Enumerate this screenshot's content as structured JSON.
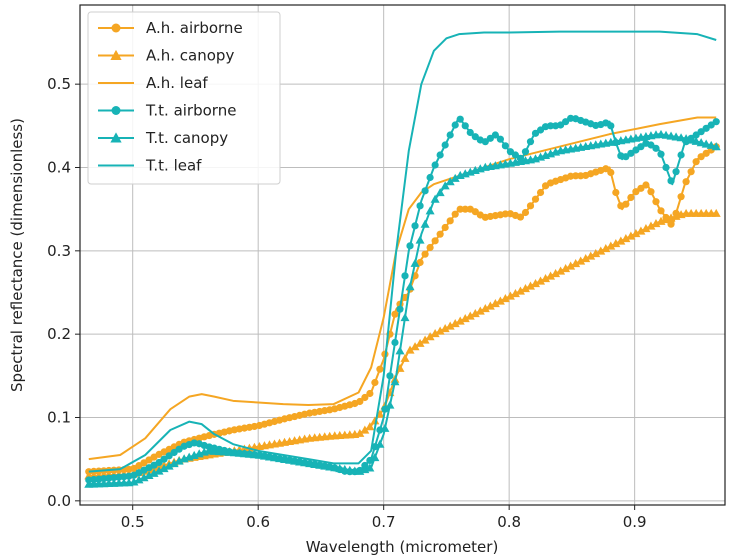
{
  "chart_data": {
    "type": "line",
    "xlabel": "Wavelength (micrometer)",
    "ylabel": "Spectral reflectance (dimensionless)",
    "xlim": [
      0.458,
      0.972
    ],
    "ylim": [
      -0.005,
      0.595
    ],
    "xticks": [
      0.5,
      0.6,
      0.7,
      0.8,
      0.9
    ],
    "xtick_labels": [
      "0.5",
      "0.6",
      "0.7",
      "0.8",
      "0.9"
    ],
    "yticks": [
      0.0,
      0.1,
      0.2,
      0.3,
      0.4,
      0.5
    ],
    "ytick_labels": [
      "0.0",
      "0.1",
      "0.2",
      "0.3",
      "0.4",
      "0.5"
    ],
    "grid": true,
    "legend_position": "top-left",
    "colors": {
      "ah": "#f5a623",
      "tt": "#17b3b6"
    },
    "series": [
      {
        "name": "A.h. airborne",
        "color": "#f5a623",
        "marker": "circle",
        "x": [
          0.465,
          0.5,
          0.52,
          0.54,
          0.56,
          0.58,
          0.6,
          0.62,
          0.64,
          0.66,
          0.68,
          0.69,
          0.7,
          0.71,
          0.72,
          0.73,
          0.74,
          0.75,
          0.76,
          0.77,
          0.78,
          0.8,
          0.81,
          0.82,
          0.83,
          0.84,
          0.85,
          0.86,
          0.87,
          0.88,
          0.885,
          0.89,
          0.9,
          0.91,
          0.92,
          0.93,
          0.94,
          0.95,
          0.96,
          0.965
        ],
        "y": [
          0.035,
          0.038,
          0.055,
          0.07,
          0.078,
          0.085,
          0.09,
          0.098,
          0.105,
          0.11,
          0.118,
          0.13,
          0.17,
          0.23,
          0.25,
          0.29,
          0.31,
          0.33,
          0.35,
          0.35,
          0.34,
          0.345,
          0.34,
          0.36,
          0.38,
          0.385,
          0.39,
          0.39,
          0.395,
          0.4,
          0.37,
          0.35,
          0.37,
          0.38,
          0.35,
          0.33,
          0.38,
          0.41,
          0.42,
          0.425
        ]
      },
      {
        "name": "A.h. canopy",
        "color": "#f5a623",
        "marker": "triangle",
        "x": [
          0.465,
          0.5,
          0.52,
          0.54,
          0.56,
          0.58,
          0.6,
          0.62,
          0.64,
          0.66,
          0.68,
          0.69,
          0.7,
          0.71,
          0.72,
          0.73,
          0.74,
          0.76,
          0.78,
          0.8,
          0.82,
          0.84,
          0.86,
          0.88,
          0.9,
          0.92,
          0.94,
          0.965
        ],
        "y": [
          0.03,
          0.032,
          0.04,
          0.05,
          0.055,
          0.06,
          0.065,
          0.07,
          0.075,
          0.078,
          0.08,
          0.09,
          0.11,
          0.15,
          0.18,
          0.19,
          0.2,
          0.215,
          0.23,
          0.245,
          0.26,
          0.275,
          0.29,
          0.305,
          0.32,
          0.335,
          0.345,
          0.345
        ]
      },
      {
        "name": "A.h. leaf",
        "color": "#f5a623",
        "marker": "none",
        "x": [
          0.465,
          0.49,
          0.51,
          0.53,
          0.545,
          0.555,
          0.565,
          0.58,
          0.6,
          0.62,
          0.64,
          0.66,
          0.68,
          0.69,
          0.7,
          0.71,
          0.72,
          0.73,
          0.74,
          0.76,
          0.78,
          0.8,
          0.84,
          0.88,
          0.92,
          0.95,
          0.965
        ],
        "y": [
          0.05,
          0.055,
          0.075,
          0.11,
          0.125,
          0.128,
          0.125,
          0.12,
          0.118,
          0.116,
          0.115,
          0.116,
          0.13,
          0.16,
          0.22,
          0.3,
          0.35,
          0.37,
          0.38,
          0.39,
          0.4,
          0.41,
          0.425,
          0.44,
          0.452,
          0.46,
          0.46
        ]
      },
      {
        "name": "T.t. airborne",
        "color": "#17b3b6",
        "marker": "circle",
        "x": [
          0.465,
          0.5,
          0.52,
          0.54,
          0.55,
          0.56,
          0.58,
          0.6,
          0.62,
          0.64,
          0.66,
          0.67,
          0.68,
          0.69,
          0.7,
          0.71,
          0.72,
          0.73,
          0.74,
          0.75,
          0.76,
          0.77,
          0.78,
          0.79,
          0.8,
          0.81,
          0.82,
          0.83,
          0.84,
          0.85,
          0.86,
          0.87,
          0.88,
          0.885,
          0.89,
          0.9,
          0.91,
          0.92,
          0.93,
          0.94,
          0.95,
          0.96,
          0.965
        ],
        "y": [
          0.025,
          0.03,
          0.045,
          0.065,
          0.07,
          0.065,
          0.058,
          0.055,
          0.05,
          0.045,
          0.04,
          0.035,
          0.035,
          0.05,
          0.1,
          0.2,
          0.3,
          0.36,
          0.4,
          0.43,
          0.46,
          0.44,
          0.43,
          0.44,
          0.42,
          0.41,
          0.44,
          0.45,
          0.45,
          0.46,
          0.455,
          0.45,
          0.455,
          0.43,
          0.41,
          0.42,
          0.43,
          0.42,
          0.38,
          0.43,
          0.44,
          0.45,
          0.455
        ]
      },
      {
        "name": "T.t. canopy",
        "color": "#17b3b6",
        "marker": "triangle",
        "x": [
          0.465,
          0.5,
          0.52,
          0.54,
          0.56,
          0.58,
          0.6,
          0.62,
          0.64,
          0.66,
          0.68,
          0.69,
          0.7,
          0.71,
          0.72,
          0.73,
          0.74,
          0.75,
          0.76,
          0.78,
          0.8,
          0.82,
          0.84,
          0.86,
          0.88,
          0.9,
          0.92,
          0.94,
          0.965
        ],
        "y": [
          0.02,
          0.022,
          0.035,
          0.05,
          0.06,
          0.058,
          0.055,
          0.05,
          0.045,
          0.04,
          0.035,
          0.04,
          0.08,
          0.15,
          0.25,
          0.32,
          0.36,
          0.38,
          0.39,
          0.4,
          0.405,
          0.41,
          0.42,
          0.425,
          0.43,
          0.435,
          0.44,
          0.435,
          0.425
        ]
      },
      {
        "name": "T.t. leaf",
        "color": "#17b3b6",
        "marker": "none",
        "x": [
          0.465,
          0.49,
          0.51,
          0.53,
          0.545,
          0.555,
          0.565,
          0.58,
          0.6,
          0.62,
          0.64,
          0.66,
          0.68,
          0.69,
          0.7,
          0.71,
          0.72,
          0.73,
          0.74,
          0.75,
          0.76,
          0.78,
          0.8,
          0.84,
          0.88,
          0.92,
          0.95,
          0.965
        ],
        "y": [
          0.035,
          0.038,
          0.055,
          0.085,
          0.095,
          0.092,
          0.08,
          0.068,
          0.06,
          0.055,
          0.05,
          0.045,
          0.045,
          0.06,
          0.15,
          0.3,
          0.42,
          0.5,
          0.54,
          0.555,
          0.56,
          0.562,
          0.562,
          0.563,
          0.563,
          0.563,
          0.56,
          0.553
        ]
      }
    ]
  }
}
